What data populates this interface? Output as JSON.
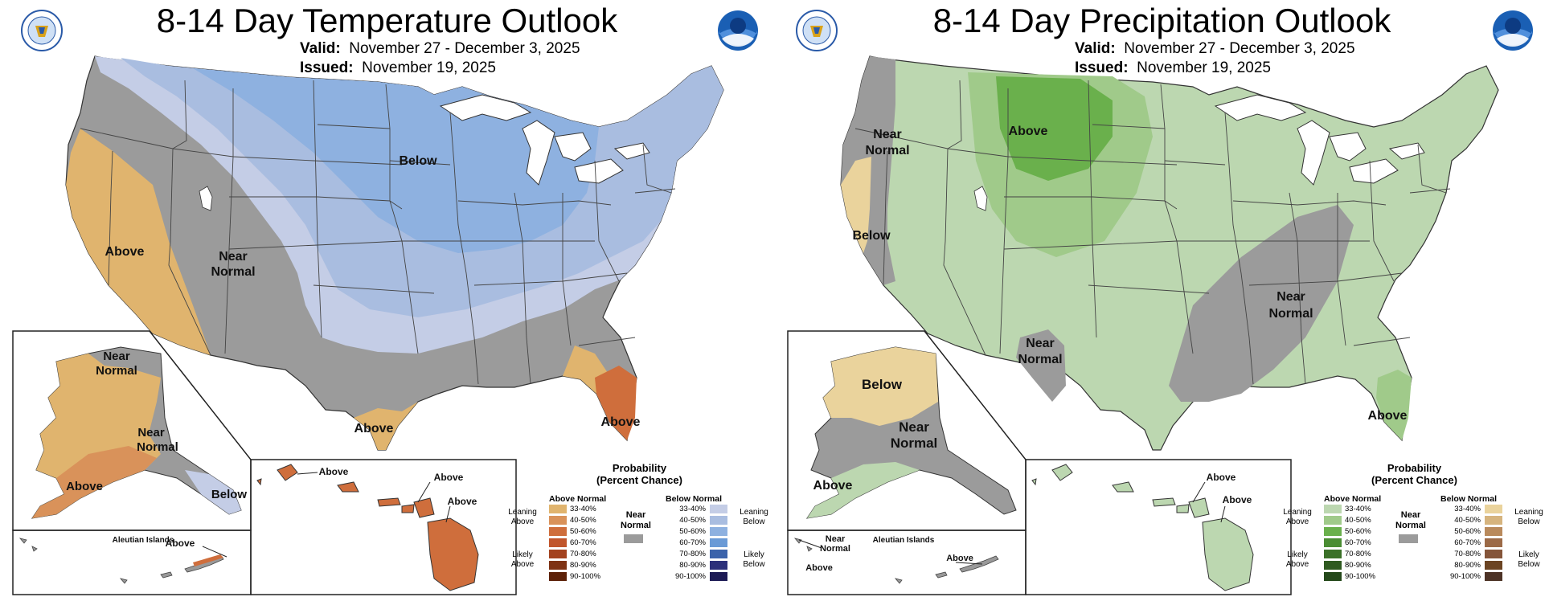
{
  "panels": [
    {
      "title": "8-14 Day Temperature Outlook",
      "valid_label": "Valid:",
      "valid_value": "November 27 - December 3, 2025",
      "issued_label": "Issued:",
      "issued_value": "November 19, 2025",
      "labels": {
        "main_1": "Below",
        "main_2": "Above",
        "main_3_a": "Near",
        "main_3_b": "Normal",
        "main_4": "Above",
        "main_5": "Above",
        "ak_1_a": "Near",
        "ak_1_b": "Normal",
        "ak_2_a": "Near",
        "ak_2_b": "Normal",
        "ak_3": "Above",
        "ak_4": "Below",
        "aleutian_title": "Aleutian Islands",
        "aleutian_label": "Above",
        "hi_1": "Above",
        "hi_2": "Above",
        "hi_3": "Above"
      }
    },
    {
      "title": "8-14 Day Precipitation Outlook",
      "valid_label": "Valid:",
      "valid_value": "November 27 - December 3, 2025",
      "issued_label": "Issued:",
      "issued_value": "November 19, 2025",
      "labels": {
        "main_1": "Above",
        "main_2_a": "Near",
        "main_2_b": "Normal",
        "main_3": "Below",
        "main_4_a": "Near",
        "main_4_b": "Normal",
        "main_5_a": "Near",
        "main_5_b": "Normal",
        "main_6": "Above",
        "ak_1": "Below",
        "ak_2_a": "Near",
        "ak_2_b": "Normal",
        "ak_3": "Above",
        "aleutian_title": "Aleutian Islands",
        "aleutian_1_a": "Near",
        "aleutian_1_b": "Normal",
        "aleutian_2": "Above",
        "aleutian_3": "Above",
        "hi_1": "Above",
        "hi_2": "Above"
      }
    }
  ],
  "legend": {
    "title_line1": "Probability",
    "title_line2": "(Percent Chance)",
    "above_header": "Above Normal",
    "below_header": "Below Normal",
    "near_label_line1": "Near",
    "near_label_line2": "Normal",
    "leaning_above_1": "Leaning",
    "leaning_above_2": "Above",
    "likely_above_1": "Likely",
    "likely_above_2": "Above",
    "leaning_below_1": "Leaning",
    "leaning_below_2": "Below",
    "likely_below_1": "Likely",
    "likely_below_2": "Below",
    "bins": [
      "33-40%",
      "40-50%",
      "50-60%",
      "60-70%",
      "70-80%",
      "80-90%",
      "90-100%"
    ]
  },
  "colors": {
    "near_normal": "#9b9b9b",
    "temp_above": [
      "#e0b46e",
      "#d9925a",
      "#cf6e3c",
      "#c1552b",
      "#a3421f",
      "#7e3214",
      "#5c2108"
    ],
    "temp_below": [
      "#c4cde6",
      "#a9bde0",
      "#8eb1e0",
      "#6a9ad6",
      "#3b63ab",
      "#2b2f7a",
      "#1d1b55"
    ],
    "precip_above": [
      "#bcd7b0",
      "#a0ca8a",
      "#6ab04c",
      "#4a8d33",
      "#3b7128",
      "#2f5a20",
      "#24481a"
    ],
    "precip_below": [
      "#ead39c",
      "#d6b47e",
      "#b98a5c",
      "#9c6a47",
      "#85553a",
      "#6b4423",
      "#4d3326"
    ],
    "state_line": "#333333",
    "lakes": "#ffffff"
  }
}
